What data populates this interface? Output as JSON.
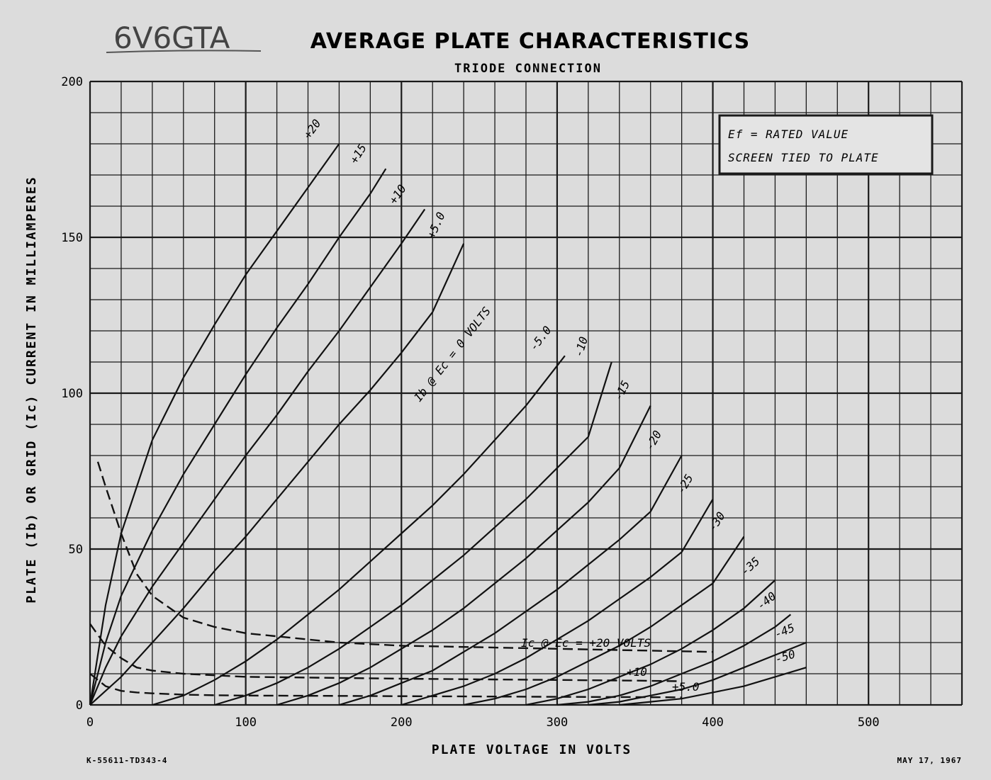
{
  "handwritten_label": "6V6GTA",
  "chart_data": {
    "type": "line",
    "title": "AVERAGE PLATE CHARACTERISTICS",
    "subtitle": "TRIODE CONNECTION",
    "xlabel": "PLATE VOLTAGE IN VOLTS",
    "ylabel": "PLATE (Ib) OR GRID (Ic) CURRENT IN MILLIAMPERES",
    "xlim": [
      0,
      560
    ],
    "ylim": [
      0,
      200
    ],
    "xticks": [
      "0",
      "100",
      "200",
      "300",
      "400",
      "500"
    ],
    "yticks": [
      "0",
      "50",
      "100",
      "150",
      "200"
    ],
    "grid": true,
    "legend_box": {
      "position": "top-right",
      "line1": "Ef = RATED VALUE",
      "line2": "SCREEN TIED TO PLATE"
    },
    "plate_family_label": "Ib @ Ec = 0 VOLTS",
    "grid_family_label": "Ic @ Ec = +20 VOLTS",
    "plate_series": [
      {
        "name": "+20",
        "x": [
          0,
          10,
          20,
          40,
          60,
          80,
          100,
          120,
          140,
          160
        ],
        "y": [
          0,
          32,
          55,
          85,
          105,
          122,
          138,
          152,
          166,
          180
        ]
      },
      {
        "name": "+15",
        "x": [
          0,
          10,
          20,
          40,
          60,
          80,
          100,
          120,
          140,
          160,
          180,
          190
        ],
        "y": [
          0,
          20,
          35,
          56,
          74,
          90,
          106,
          121,
          135,
          150,
          164,
          172
        ]
      },
      {
        "name": "+10",
        "x": [
          0,
          10,
          20,
          40,
          60,
          80,
          100,
          120,
          140,
          160,
          180,
          200,
          215
        ],
        "y": [
          0,
          12,
          22,
          38,
          52,
          66,
          80,
          93,
          107,
          120,
          134,
          148,
          159
        ]
      },
      {
        "name": "+5.0",
        "x": [
          0,
          20,
          40,
          60,
          80,
          100,
          120,
          140,
          160,
          180,
          200,
          220,
          240
        ],
        "y": [
          0,
          9,
          20,
          31,
          43,
          54,
          66,
          78,
          90,
          101,
          113,
          126,
          148
        ]
      },
      {
        "name": "-5.0",
        "x": [
          40,
          60,
          80,
          100,
          120,
          140,
          160,
          180,
          200,
          220,
          240,
          260,
          280,
          305
        ],
        "y": [
          0,
          3,
          8,
          14,
          21,
          29,
          37,
          46,
          55,
          64,
          74,
          85,
          96,
          112
        ]
      },
      {
        "name": "-10",
        "x": [
          80,
          100,
          120,
          140,
          160,
          180,
          200,
          220,
          240,
          260,
          280,
          300,
          320,
          335
        ],
        "y": [
          0,
          3,
          7,
          12,
          18,
          25,
          32,
          40,
          48,
          57,
          66,
          76,
          86,
          110
        ]
      },
      {
        "name": "-15",
        "x": [
          120,
          140,
          160,
          180,
          200,
          220,
          240,
          260,
          280,
          300,
          320,
          340,
          360
        ],
        "y": [
          0,
          3,
          7,
          12,
          18,
          24,
          31,
          39,
          47,
          56,
          65,
          76,
          96
        ]
      },
      {
        "name": "-20",
        "x": [
          160,
          180,
          200,
          220,
          240,
          260,
          280,
          300,
          320,
          340,
          360,
          380
        ],
        "y": [
          0,
          3,
          7,
          11,
          17,
          23,
          30,
          37,
          45,
          53,
          62,
          80
        ]
      },
      {
        "name": "-25",
        "x": [
          200,
          220,
          240,
          260,
          280,
          300,
          320,
          340,
          360,
          380,
          400
        ],
        "y": [
          0,
          3,
          6,
          10,
          15,
          21,
          27,
          34,
          41,
          49,
          66
        ]
      },
      {
        "name": "-30",
        "x": [
          240,
          260,
          280,
          300,
          320,
          340,
          360,
          380,
          400,
          420
        ],
        "y": [
          0,
          2,
          5,
          9,
          14,
          19,
          25,
          32,
          39,
          54
        ]
      },
      {
        "name": "-35",
        "x": [
          280,
          300,
          320,
          340,
          360,
          380,
          400,
          420,
          440
        ],
        "y": [
          0,
          2,
          5,
          9,
          13,
          18,
          24,
          31,
          40
        ]
      },
      {
        "name": "-40",
        "x": [
          300,
          320,
          340,
          360,
          380,
          400,
          420,
          440,
          450
        ],
        "y": [
          0,
          1,
          3,
          6,
          10,
          14,
          19,
          25,
          29
        ]
      },
      {
        "name": "-45",
        "x": [
          320,
          340,
          360,
          380,
          400,
          420,
          440,
          460
        ],
        "y": [
          0,
          1,
          3,
          5,
          8,
          12,
          16,
          20
        ]
      },
      {
        "name": "-50",
        "x": [
          340,
          360,
          380,
          400,
          420,
          440,
          460
        ],
        "y": [
          0,
          1,
          2,
          4,
          6,
          9,
          12
        ]
      }
    ],
    "grid_current_series": [
      {
        "name": "+20",
        "x": [
          5,
          10,
          20,
          30,
          40,
          60,
          80,
          100,
          120,
          140,
          160,
          200,
          250,
          300,
          350,
          400
        ],
        "y": [
          78,
          70,
          55,
          42,
          35,
          28,
          25,
          23,
          22,
          21,
          20,
          19,
          18.5,
          18,
          17.5,
          17
        ]
      },
      {
        "name": "+10",
        "x": [
          0,
          10,
          20,
          30,
          40,
          60,
          80,
          100,
          150,
          200,
          250,
          300,
          350,
          380
        ],
        "y": [
          26,
          19,
          15,
          12,
          11,
          10,
          9.5,
          9,
          8.7,
          8.4,
          8.2,
          8,
          7.8,
          7.6
        ]
      },
      {
        "name": "+5.0",
        "x": [
          0,
          10,
          20,
          30,
          40,
          60,
          80,
          100,
          150,
          200,
          250,
          300,
          350,
          380
        ],
        "y": [
          10,
          6,
          4.5,
          4,
          3.7,
          3.3,
          3.1,
          3,
          2.9,
          2.8,
          2.7,
          2.6,
          2.5,
          2.4
        ]
      }
    ],
    "grid_current_labels": [
      "+10",
      "+5.0"
    ]
  },
  "footer": {
    "left": "K-55611-TD343-4",
    "right": "MAY 17, 1967"
  }
}
